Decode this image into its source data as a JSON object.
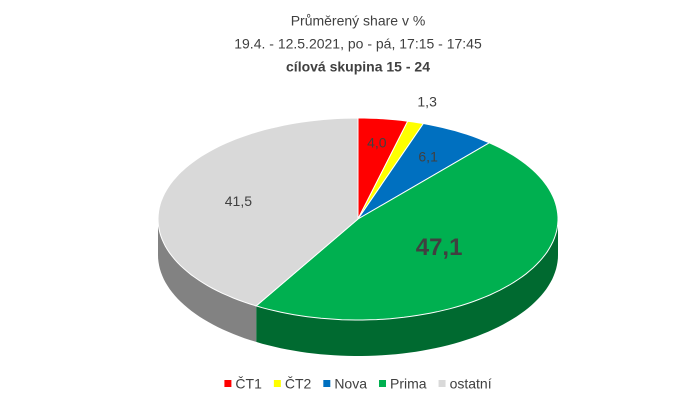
{
  "chart_data": {
    "type": "pie3d",
    "title": "Průměrený share v %",
    "subtitle": "19.4. - 12.5.2021, po - pá, 17:15 - 17:45",
    "audience": "cílová skupina 15 - 24",
    "categories": [
      "ČT1",
      "ČT2",
      "Nova",
      "Prima",
      "ostatní"
    ],
    "values": [
      4.0,
      1.3,
      6.1,
      47.1,
      41.5
    ],
    "value_labels": [
      "4,0",
      "1,3",
      "6,1",
      "47,1",
      "41,5"
    ],
    "colors": [
      "#ff0000",
      "#ffff00",
      "#0070c0",
      "#00b050",
      "#d9d9d9"
    ],
    "legend": "bottom"
  }
}
